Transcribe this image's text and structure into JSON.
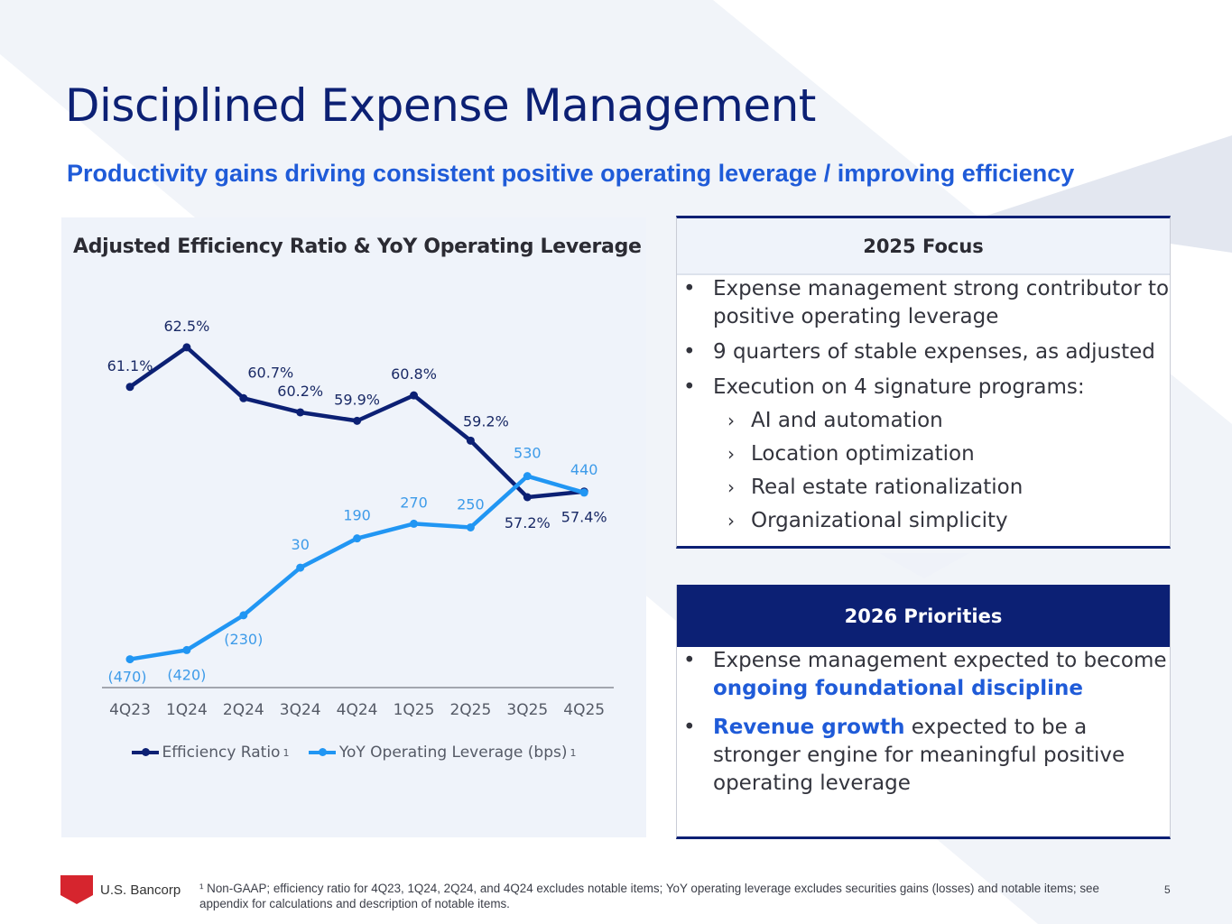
{
  "page": {
    "title": "Disciplined Expense Management",
    "subtitle": "Productivity gains driving consistent positive operating leverage / improving efficiency",
    "page_number": "5"
  },
  "colors": {
    "navy": "#0c2074",
    "accent_blue": "#1f5bd8",
    "efficiency_line": "#0c2074",
    "leverage_line": "#2196f3",
    "logo_red": "#d6252e"
  },
  "chart_data": {
    "type": "line",
    "title": "Adjusted Efficiency Ratio & YoY Operating Leverage",
    "xlabel": "",
    "ylabel": "",
    "grid": false,
    "legend_position": "bottom",
    "categories": [
      "4Q23",
      "1Q24",
      "2Q24",
      "3Q24",
      "4Q24",
      "1Q25",
      "2Q25",
      "3Q25",
      "4Q25"
    ],
    "series": [
      {
        "name": "Efficiency Ratio",
        "footnote": "1",
        "unit": "%",
        "values": [
          61.1,
          62.5,
          60.7,
          60.2,
          59.9,
          60.8,
          59.2,
          57.2,
          57.4
        ],
        "labels": [
          "61.1%",
          "62.5%",
          "60.7%",
          "60.2%",
          "59.9%",
          "60.8%",
          "59.2%",
          "57.2%",
          "57.4%"
        ],
        "ylim": [
          50.5,
          63.9
        ]
      },
      {
        "name": "YoY Operating Leverage (bps)",
        "footnote": "1",
        "unit": "bps",
        "values": [
          -470,
          -420,
          -230,
          30,
          190,
          270,
          250,
          530,
          440
        ],
        "labels": [
          "(470)",
          "(420)",
          "(230)",
          "30",
          "190",
          "270",
          "250",
          "530",
          "440"
        ],
        "ylim": [
          -620,
          1450
        ]
      }
    ]
  },
  "focus_2025": {
    "header": "2025 Focus",
    "bullets": [
      "Expense management strong contributor to positive operating leverage",
      "9 quarters of stable expenses, as adjusted",
      "Execution on 4 signature programs:"
    ],
    "sub_bullets": [
      "AI and automation",
      "Location optimization",
      "Real estate rationalization",
      "Organizational simplicity"
    ]
  },
  "priorities_2026": {
    "header": "2026 Priorities",
    "bullet1_prefix": "Expense management expected to become ",
    "bullet1_highlight": "ongoing foundational discipline",
    "bullet2_highlight": "Revenue growth",
    "bullet2_suffix": " expected to be a stronger engine for meaningful positive operating leverage"
  },
  "footer": {
    "logo_text": "U.S. Bancorp",
    "footnote": "¹ Non-GAAP; efficiency ratio for 4Q23, 1Q24, 2Q24, and 4Q24 excludes notable items; YoY operating leverage excludes securities gains (losses) and notable items; see appendix for calculations and description of notable items."
  },
  "bullet_glyph": "•",
  "chevron_glyph": "›"
}
